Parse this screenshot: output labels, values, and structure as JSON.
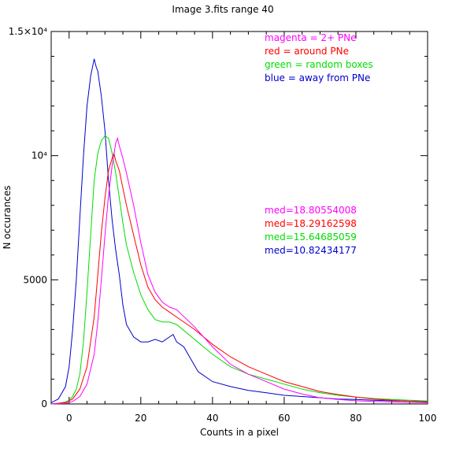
{
  "chart_data": {
    "type": "line",
    "title": "Image 3.fits   range 40",
    "xlabel": "Counts in a pixel",
    "ylabel": "N occurances",
    "xlim": [
      -5,
      100
    ],
    "ylim": [
      0,
      15000
    ],
    "x_ticks": [
      0,
      20,
      40,
      60,
      80,
      100
    ],
    "x_tick_labels": [
      "0",
      "20",
      "40",
      "60",
      "80",
      "100"
    ],
    "y_ticks": [
      0,
      5000,
      10000,
      15000
    ],
    "y_tick_labels": [
      "0",
      "5000",
      "10⁴",
      "1.5×10⁴"
    ],
    "legend": [
      {
        "text": "magenta = 2+ PNe",
        "color": "#ff00ff"
      },
      {
        "text": "red = around PNe",
        "color": "#ff0000"
      },
      {
        "text": "green = random boxes",
        "color": "#00dd00"
      },
      {
        "text": "blue = away from PNe",
        "color": "#0000cc"
      }
    ],
    "medians": [
      {
        "text": "med=18.80554008",
        "color": "#ff00ff"
      },
      {
        "text": "med=18.29162598",
        "color": "#ff0000"
      },
      {
        "text": "med=15.64685059",
        "color": "#00dd00"
      },
      {
        "text": "med=10.82434177",
        "color": "#0000cc"
      }
    ],
    "series": [
      {
        "color": "#0000cc",
        "x": [
          -5,
          -3,
          -1,
          0,
          1,
          2,
          3,
          4,
          5,
          6,
          7,
          7.5,
          8,
          9,
          10,
          11,
          12,
          13,
          14,
          15,
          16,
          18,
          20,
          22,
          24,
          26,
          28,
          29,
          30,
          32,
          34,
          36,
          40,
          45,
          50,
          55,
          60,
          65,
          70,
          75,
          80,
          85,
          90,
          95,
          100
        ],
        "y": [
          50,
          200,
          700,
          1500,
          3000,
          5000,
          7500,
          10000,
          12000,
          13200,
          13900,
          13600,
          13400,
          12400,
          11000,
          9000,
          7400,
          6200,
          5200,
          4000,
          3200,
          2700,
          2500,
          2500,
          2600,
          2500,
          2700,
          2800,
          2500,
          2300,
          1800,
          1300,
          900,
          700,
          550,
          450,
          350,
          300,
          250,
          200,
          180,
          150,
          130,
          110,
          100
        ]
      },
      {
        "color": "#00dd00",
        "x": [
          -5,
          -3,
          -1,
          0,
          1,
          2,
          3,
          4,
          5,
          6,
          7,
          8,
          9,
          10,
          11,
          12,
          13,
          14,
          15,
          16,
          18,
          20,
          22,
          24,
          26,
          28,
          30,
          35,
          40,
          45,
          50,
          55,
          60,
          65,
          70,
          75,
          80,
          85,
          90,
          95,
          100
        ],
        "y": [
          10,
          30,
          80,
          150,
          300,
          600,
          1200,
          2500,
          4500,
          6800,
          9000,
          10100,
          10600,
          10800,
          10700,
          10100,
          9300,
          8300,
          7300,
          6400,
          5300,
          4400,
          3800,
          3400,
          3300,
          3300,
          3200,
          2600,
          2000,
          1500,
          1200,
          1000,
          800,
          600,
          450,
          350,
          280,
          220,
          180,
          150,
          120
        ]
      },
      {
        "color": "#ff0000",
        "x": [
          -5,
          -1,
          1,
          3,
          5,
          7,
          8,
          9,
          10,
          11,
          12,
          12.5,
          13,
          14,
          15,
          16,
          18,
          20,
          22,
          24,
          26,
          28,
          30,
          35,
          40,
          45,
          50,
          55,
          60,
          65,
          70,
          75,
          80,
          85,
          90,
          95,
          100
        ],
        "y": [
          0,
          50,
          200,
          600,
          1500,
          3500,
          5200,
          6900,
          8300,
          9400,
          9900,
          10100,
          9800,
          9400,
          8700,
          8000,
          6800,
          5600,
          4700,
          4200,
          3900,
          3700,
          3500,
          3000,
          2400,
          1900,
          1500,
          1200,
          900,
          700,
          500,
          380,
          280,
          200,
          150,
          110,
          80
        ]
      },
      {
        "color": "#ff00ff",
        "x": [
          -5,
          -1,
          1,
          3,
          5,
          7,
          8,
          9,
          10,
          11,
          12,
          13,
          13.5,
          14,
          15,
          16,
          18,
          20,
          22,
          24,
          26,
          28,
          30,
          35,
          40,
          45,
          50,
          55,
          60,
          65,
          70,
          75,
          80,
          85,
          90,
          95,
          100
        ],
        "y": [
          0,
          20,
          100,
          300,
          800,
          2000,
          3300,
          5000,
          6800,
          8400,
          9600,
          10500,
          10700,
          10400,
          9900,
          9300,
          8000,
          6500,
          5200,
          4500,
          4100,
          3900,
          3800,
          3100,
          2300,
          1600,
          1200,
          900,
          600,
          400,
          250,
          180,
          130,
          100,
          80,
          60,
          50
        ]
      }
    ]
  }
}
